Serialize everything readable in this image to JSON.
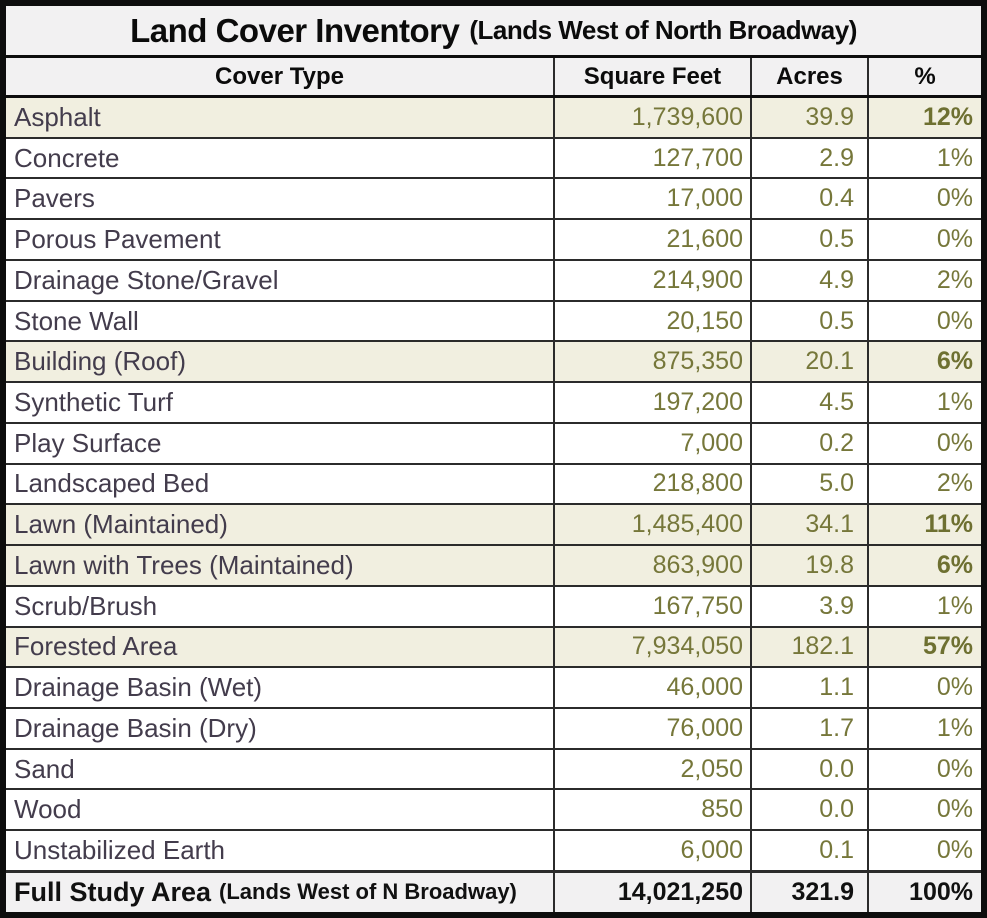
{
  "title": {
    "main": "Land Cover Inventory",
    "sub": "(Lands West of North Broadway)"
  },
  "header": {
    "cover_type": "Cover Type",
    "square_feet": "Square Feet",
    "acres": "Acres",
    "percent": "%"
  },
  "chart_data": {
    "type": "table",
    "title": "Land Cover Inventory (Lands West of North Broadway)",
    "columns": [
      "Cover Type",
      "Square Feet",
      "Acres",
      "%"
    ],
    "rows": [
      {
        "cover_type": "Asphalt",
        "square_feet": "1,739,600",
        "acres": "39.9",
        "percent": "12%",
        "highlight": true,
        "bold_percent": true
      },
      {
        "cover_type": "Concrete",
        "square_feet": "127,700",
        "acres": "2.9",
        "percent": "1%",
        "highlight": false,
        "bold_percent": false
      },
      {
        "cover_type": "Pavers",
        "square_feet": "17,000",
        "acres": "0.4",
        "percent": "0%",
        "highlight": false,
        "bold_percent": false
      },
      {
        "cover_type": "Porous Pavement",
        "square_feet": "21,600",
        "acres": "0.5",
        "percent": "0%",
        "highlight": false,
        "bold_percent": false
      },
      {
        "cover_type": "Drainage Stone/Gravel",
        "square_feet": "214,900",
        "acres": "4.9",
        "percent": "2%",
        "highlight": false,
        "bold_percent": false
      },
      {
        "cover_type": "Stone Wall",
        "square_feet": "20,150",
        "acres": "0.5",
        "percent": "0%",
        "highlight": false,
        "bold_percent": false
      },
      {
        "cover_type": "Building (Roof)",
        "square_feet": "875,350",
        "acres": "20.1",
        "percent": "6%",
        "highlight": true,
        "bold_percent": true
      },
      {
        "cover_type": "Synthetic Turf",
        "square_feet": "197,200",
        "acres": "4.5",
        "percent": "1%",
        "highlight": false,
        "bold_percent": false
      },
      {
        "cover_type": "Play Surface",
        "square_feet": "7,000",
        "acres": "0.2",
        "percent": "0%",
        "highlight": false,
        "bold_percent": false
      },
      {
        "cover_type": "Landscaped Bed",
        "square_feet": "218,800",
        "acres": "5.0",
        "percent": "2%",
        "highlight": false,
        "bold_percent": false
      },
      {
        "cover_type": "Lawn (Maintained)",
        "square_feet": "1,485,400",
        "acres": "34.1",
        "percent": "11%",
        "highlight": true,
        "bold_percent": true
      },
      {
        "cover_type": "Lawn with Trees (Maintained)",
        "square_feet": "863,900",
        "acres": "19.8",
        "percent": "6%",
        "highlight": true,
        "bold_percent": true
      },
      {
        "cover_type": "Scrub/Brush",
        "square_feet": "167,750",
        "acres": "3.9",
        "percent": "1%",
        "highlight": false,
        "bold_percent": false
      },
      {
        "cover_type": "Forested Area",
        "square_feet": "7,934,050",
        "acres": "182.1",
        "percent": "57%",
        "highlight": true,
        "bold_percent": true
      },
      {
        "cover_type": "Drainage Basin (Wet)",
        "square_feet": "46,000",
        "acres": "1.1",
        "percent": "0%",
        "highlight": false,
        "bold_percent": false
      },
      {
        "cover_type": "Drainage Basin (Dry)",
        "square_feet": "76,000",
        "acres": "1.7",
        "percent": "1%",
        "highlight": false,
        "bold_percent": false
      },
      {
        "cover_type": "Sand",
        "square_feet": "2,050",
        "acres": "0.0",
        "percent": "0%",
        "highlight": false,
        "bold_percent": false
      },
      {
        "cover_type": "Wood",
        "square_feet": "850",
        "acres": "0.0",
        "percent": "0%",
        "highlight": false,
        "bold_percent": false
      },
      {
        "cover_type": "Unstabilized Earth",
        "square_feet": "6,000",
        "acres": "0.1",
        "percent": "0%",
        "highlight": false,
        "bold_percent": false
      }
    ],
    "total": {
      "label_main": "Full Study Area",
      "label_sub": "(Lands West of N Broadway)",
      "square_feet": "14,021,250",
      "acres": "321.9",
      "percent": "100%"
    }
  },
  "colors": {
    "highlight_bg": "#f1efe0",
    "row_bg": "#ffffff",
    "header_bg": "#f2f1f2",
    "number_text": "#76773a",
    "bold_number_text": "#6e7031",
    "cover_text": "#433c4c",
    "total_text": "#111111",
    "grid_line": "#2b2b2b",
    "outer_border": "#0d0d0d"
  }
}
